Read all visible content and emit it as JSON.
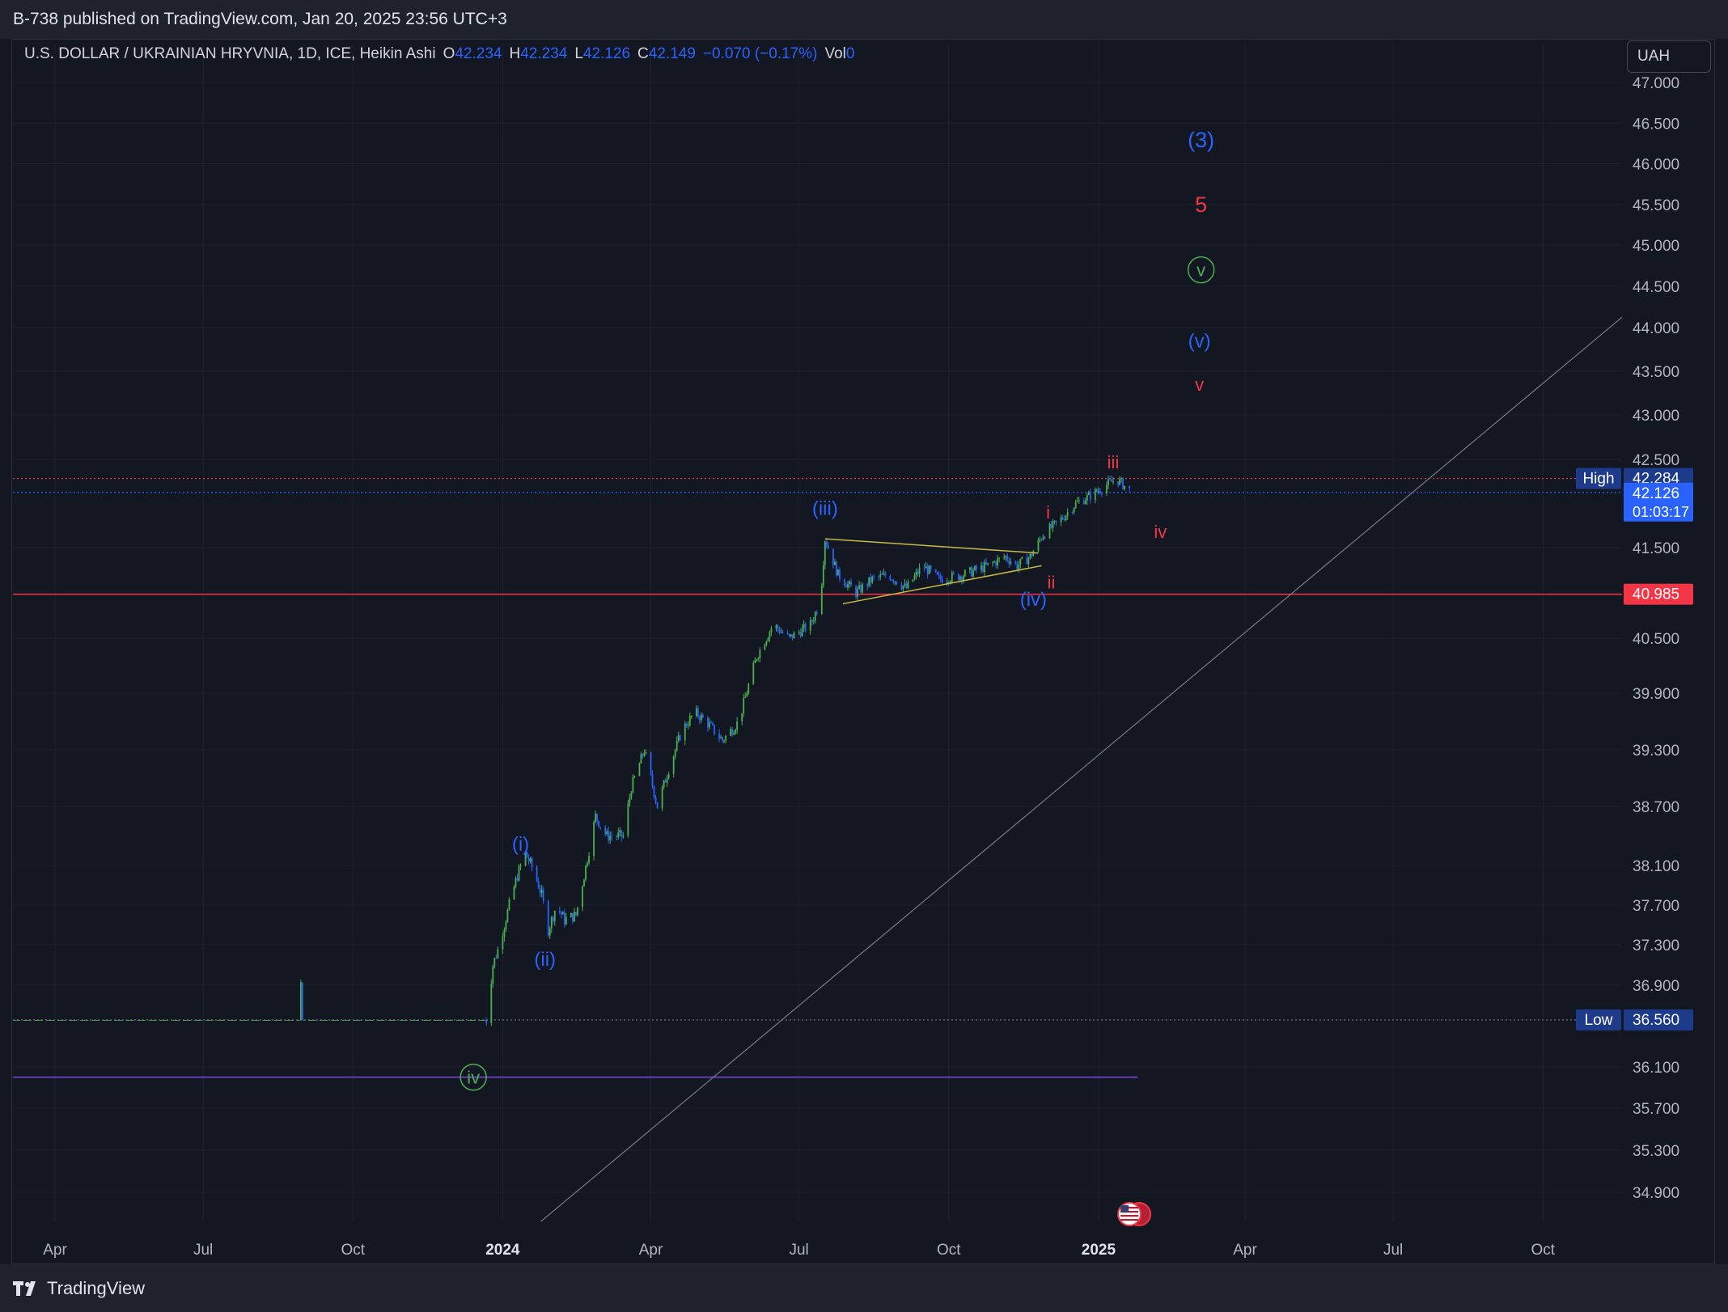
{
  "header": {
    "published_text": "B-738 published on TradingView.com, Jan 20, 2025 23:56 UTC+3"
  },
  "legend": {
    "symbol": "U.S. DOLLAR / UKRAINIAN HRYVNIA, 1D, ICE, Heikin Ashi",
    "o_label": "O",
    "o_value": "42.234",
    "h_label": "H",
    "h_value": "42.234",
    "l_label": "L",
    "l_value": "42.126",
    "c_label": "C",
    "c_value": "42.149",
    "change": "−0.070 (−0.17%)",
    "vol_label": "Vol",
    "vol_value": "0"
  },
  "currency_button": {
    "label": "UAH"
  },
  "footer": {
    "brand": "TradingView",
    "logo_icon": "tradingview-logo-icon"
  },
  "colors": {
    "background": "#131722",
    "grid": "#1e222d",
    "up": "#4caf50",
    "down": "#2962ff",
    "blue_label": "#2962ff",
    "red_label": "#f23645",
    "green_label": "#4caf50",
    "trendline": "#787b86",
    "triangle": "#c9b943",
    "support": "#f23645",
    "purple_line": "#673ab7"
  },
  "chart_data": {
    "type": "candlestick",
    "style": "Heikin Ashi",
    "ylim": [
      34.5,
      47.2
    ],
    "y_ticks": [
      "47.000",
      "46.500",
      "46.000",
      "45.500",
      "45.000",
      "44.500",
      "44.000",
      "43.500",
      "43.000",
      "42.500",
      "41.500",
      "40.500",
      "39.900",
      "39.300",
      "38.700",
      "38.100",
      "37.700",
      "37.300",
      "36.900",
      "36.100",
      "35.700",
      "35.300",
      "34.900"
    ],
    "x_ticks": [
      "Apr",
      "Jul",
      "Oct",
      "2024",
      "Apr",
      "Jul",
      "Oct",
      "2025",
      "Apr",
      "Jul",
      "Oct"
    ],
    "x_range": [
      "2023-03-01",
      "2025-12-15"
    ],
    "price_path": [
      [
        "2023-03-01",
        36.56
      ],
      [
        "2023-08-29",
        36.56
      ],
      [
        "2023-08-30",
        36.93
      ],
      [
        "2023-08-31",
        36.56
      ],
      [
        "2023-12-22",
        36.56
      ],
      [
        "2023-12-26",
        37.1
      ],
      [
        "2023-12-30",
        37.3
      ],
      [
        "2024-01-05",
        37.7
      ],
      [
        "2024-01-10",
        38.0
      ],
      [
        "2024-01-15",
        38.22
      ],
      [
        "2024-01-20",
        38.05
      ],
      [
        "2024-01-25",
        37.8
      ],
      [
        "2024-01-29",
        37.45
      ],
      [
        "2024-02-03",
        37.7
      ],
      [
        "2024-02-08",
        37.55
      ],
      [
        "2024-02-15",
        37.6
      ],
      [
        "2024-02-20",
        38.0
      ],
      [
        "2024-02-27",
        38.6
      ],
      [
        "2024-03-05",
        38.4
      ],
      [
        "2024-03-15",
        38.4
      ],
      [
        "2024-03-20",
        38.9
      ],
      [
        "2024-03-28",
        39.3
      ],
      [
        "2024-04-05",
        38.7
      ],
      [
        "2024-04-12",
        39.1
      ],
      [
        "2024-04-20",
        39.5
      ],
      [
        "2024-04-28",
        39.7
      ],
      [
        "2024-05-05",
        39.6
      ],
      [
        "2024-05-15",
        39.4
      ],
      [
        "2024-05-25",
        39.6
      ],
      [
        "2024-06-05",
        40.3
      ],
      [
        "2024-06-15",
        40.65
      ],
      [
        "2024-06-25",
        40.5
      ],
      [
        "2024-07-08",
        40.65
      ],
      [
        "2024-07-14",
        40.9
      ],
      [
        "2024-07-17",
        41.6
      ],
      [
        "2024-07-25",
        41.2
      ],
      [
        "2024-08-05",
        41.0
      ],
      [
        "2024-08-15",
        41.15
      ],
      [
        "2024-08-25",
        41.2
      ],
      [
        "2024-09-05",
        41.05
      ],
      [
        "2024-09-15",
        41.3
      ],
      [
        "2024-09-25",
        41.15
      ],
      [
        "2024-10-10",
        41.2
      ],
      [
        "2024-10-25",
        41.3
      ],
      [
        "2024-11-05",
        41.4
      ],
      [
        "2024-11-12",
        41.3
      ],
      [
        "2024-11-20",
        41.4
      ],
      [
        "2024-11-28",
        41.65
      ],
      [
        "2024-12-08",
        41.8
      ],
      [
        "2024-12-18",
        42.0
      ],
      [
        "2024-12-28",
        42.1
      ],
      [
        "2025-01-05",
        42.2
      ],
      [
        "2025-01-12",
        42.28
      ],
      [
        "2025-01-20",
        42.15
      ]
    ],
    "horizontal_lines": [
      {
        "id": "high-line",
        "value": 42.284,
        "style": "dotted",
        "color": "#f23645"
      },
      {
        "id": "last-line",
        "value": 42.126,
        "style": "dotted",
        "color": "#2962ff"
      },
      {
        "id": "support-line",
        "value": 40.985,
        "style": "solid",
        "color": "#f23645"
      },
      {
        "id": "low-line",
        "value": 36.56,
        "style": "dotted",
        "color": "#787b86"
      },
      {
        "id": "purple-line",
        "value": 36.0,
        "style": "solid",
        "color": "#673ab7",
        "end": "2025-01-25"
      }
    ],
    "trendline": {
      "from": [
        "2024-01-15",
        34.5
      ],
      "to": [
        "2025-11-20",
        44.15
      ]
    },
    "triangle": [
      {
        "from": [
          "2024-07-17",
          41.6
        ],
        "to": [
          "2024-11-25",
          41.44
        ]
      },
      {
        "from": [
          "2024-07-28",
          40.88
        ],
        "to": [
          "2024-11-27",
          41.3
        ]
      }
    ],
    "wave_labels": [
      {
        "text": "(3)",
        "date": "2025-03-05",
        "price": 46.3,
        "color": "blue",
        "size": 27
      },
      {
        "text": "5",
        "date": "2025-03-05",
        "price": 45.5,
        "color": "red",
        "size": 27
      },
      {
        "text": "v",
        "date": "2025-03-05",
        "price": 44.7,
        "color": "green",
        "size": 22,
        "circled": true
      },
      {
        "text": "(v)",
        "date": "2025-03-04",
        "price": 43.85,
        "color": "blue",
        "size": 24
      },
      {
        "text": "v",
        "date": "2025-03-04",
        "price": 43.35,
        "color": "red",
        "size": 22
      },
      {
        "text": "iii",
        "date": "2025-01-10",
        "price": 42.47,
        "color": "red",
        "size": 22
      },
      {
        "text": "i",
        "date": "2024-12-01",
        "price": 41.9,
        "color": "red",
        "size": 22
      },
      {
        "text": "iv",
        "date": "2025-02-08",
        "price": 41.68,
        "color": "red",
        "size": 22
      },
      {
        "text": "ii",
        "date": "2024-12-03",
        "price": 41.12,
        "color": "red",
        "size": 22
      },
      {
        "text": "(iii)",
        "date": "2024-07-17",
        "price": 41.95,
        "color": "blue",
        "size": 24
      },
      {
        "text": "(iv)",
        "date": "2024-11-22",
        "price": 40.93,
        "color": "blue",
        "size": 24
      },
      {
        "text": "(i)",
        "date": "2024-01-12",
        "price": 38.32,
        "color": "blue",
        "size": 24
      },
      {
        "text": "(ii)",
        "date": "2024-01-27",
        "price": 37.16,
        "color": "blue",
        "size": 24
      },
      {
        "text": "iv",
        "date": "2023-12-14",
        "price": 36.0,
        "color": "green",
        "size": 22,
        "circled": true
      }
    ],
    "price_tags": [
      {
        "label": "High",
        "value_text": "42.284",
        "value": 42.284,
        "kind": "high"
      },
      {
        "value_text": "42.126",
        "sub_text": "01:03:17",
        "value": 42.126,
        "kind": "last"
      },
      {
        "value_text": "40.985",
        "value": 40.985,
        "kind": "support"
      },
      {
        "label": "Low",
        "value_text": "36.560",
        "value": 36.56,
        "kind": "low"
      }
    ],
    "event_icon": {
      "name": "us-flag-icon",
      "date": "2025-01-20"
    }
  }
}
